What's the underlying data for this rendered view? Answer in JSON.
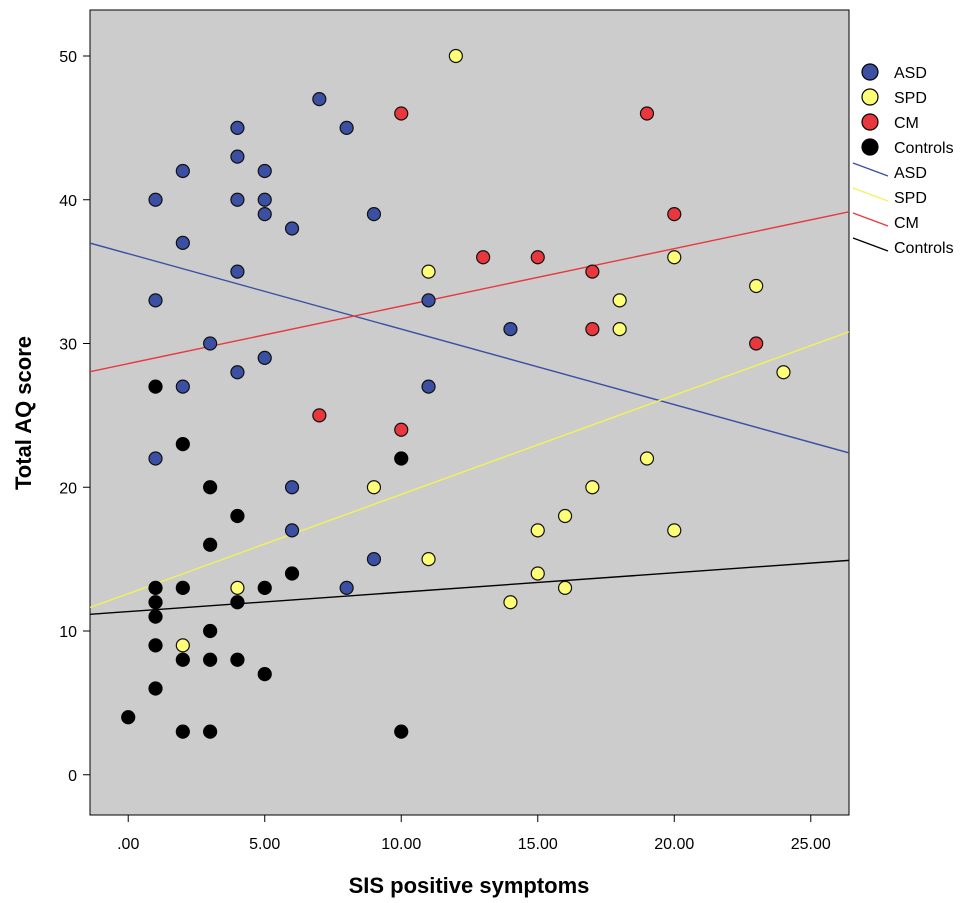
{
  "chart_data": {
    "type": "scatter",
    "xlabel": "SIS positive symptoms",
    "ylabel": "Total AQ score",
    "xlim": [
      -1.4,
      26.4
    ],
    "ylim": [
      -2.8,
      53.2
    ],
    "x_ticks": [
      0,
      5,
      10,
      15,
      20,
      25
    ],
    "x_tick_labels": [
      ".00",
      "5.00",
      "10.00",
      "15.00",
      "20.00",
      "25.00"
    ],
    "y_ticks": [
      0,
      10,
      20,
      30,
      40,
      50
    ],
    "y_tick_labels": [
      "0",
      "10",
      "20",
      "30",
      "40",
      "50"
    ],
    "grid": false,
    "background": "#cccccc",
    "legend_position": "right",
    "series": [
      {
        "name": "ASD",
        "color": "#3b4fa3",
        "points": [
          [
            1,
            40
          ],
          [
            1,
            33
          ],
          [
            1,
            22
          ],
          [
            2,
            42
          ],
          [
            2,
            37
          ],
          [
            2,
            27
          ],
          [
            3,
            30
          ],
          [
            4,
            45
          ],
          [
            4,
            43
          ],
          [
            4,
            40
          ],
          [
            4,
            35
          ],
          [
            4,
            28
          ],
          [
            5,
            42
          ],
          [
            5,
            40
          ],
          [
            5,
            39
          ],
          [
            5,
            29
          ],
          [
            6,
            38
          ],
          [
            6,
            20
          ],
          [
            6,
            17
          ],
          [
            7,
            47
          ],
          [
            8,
            45
          ],
          [
            8,
            13
          ],
          [
            9,
            39
          ],
          [
            9,
            15
          ],
          [
            11,
            33
          ],
          [
            11,
            27
          ],
          [
            14,
            31
          ]
        ]
      },
      {
        "name": "SPD",
        "color": "#ffff77",
        "points": [
          [
            2,
            9
          ],
          [
            4,
            13
          ],
          [
            9,
            20
          ],
          [
            11,
            35
          ],
          [
            11,
            15
          ],
          [
            12,
            50
          ],
          [
            14,
            12
          ],
          [
            15,
            17
          ],
          [
            15,
            14
          ],
          [
            16,
            18
          ],
          [
            16,
            13
          ],
          [
            17,
            20
          ],
          [
            18,
            33
          ],
          [
            18,
            31
          ],
          [
            19,
            22
          ],
          [
            20,
            36
          ],
          [
            20,
            17
          ],
          [
            23,
            34
          ],
          [
            24,
            28
          ]
        ]
      },
      {
        "name": "CM",
        "color": "#e8383d",
        "points": [
          [
            7,
            25
          ],
          [
            10,
            46
          ],
          [
            10,
            24
          ],
          [
            13,
            36
          ],
          [
            15,
            36
          ],
          [
            17,
            35
          ],
          [
            17,
            31
          ],
          [
            19,
            46
          ],
          [
            20,
            39
          ],
          [
            23,
            30
          ]
        ]
      },
      {
        "name": "Controls",
        "color": "#000000",
        "points": [
          [
            0,
            4
          ],
          [
            1,
            27
          ],
          [
            1,
            13
          ],
          [
            1,
            12
          ],
          [
            1,
            11
          ],
          [
            1,
            9
          ],
          [
            1,
            6
          ],
          [
            2,
            23
          ],
          [
            2,
            13
          ],
          [
            2,
            8
          ],
          [
            2,
            3
          ],
          [
            3,
            20
          ],
          [
            3,
            16
          ],
          [
            3,
            10
          ],
          [
            3,
            8
          ],
          [
            3,
            3
          ],
          [
            4,
            18
          ],
          [
            4,
            12
          ],
          [
            4,
            8
          ],
          [
            5,
            13
          ],
          [
            5,
            7
          ],
          [
            6,
            14
          ],
          [
            10,
            22
          ],
          [
            10,
            3
          ]
        ]
      }
    ],
    "fit_lines": [
      {
        "name": "ASD",
        "color": "#3b4fa3",
        "intercept": 36.25,
        "slope": -0.525
      },
      {
        "name": "SPD",
        "color": "#f2f25a",
        "intercept": 12.6,
        "slope": 0.69
      },
      {
        "name": "CM",
        "color": "#e8383d",
        "intercept": 28.6,
        "slope": 0.4
      },
      {
        "name": "Controls",
        "color": "#000000",
        "intercept": 11.35,
        "slope": 0.135
      }
    ]
  }
}
